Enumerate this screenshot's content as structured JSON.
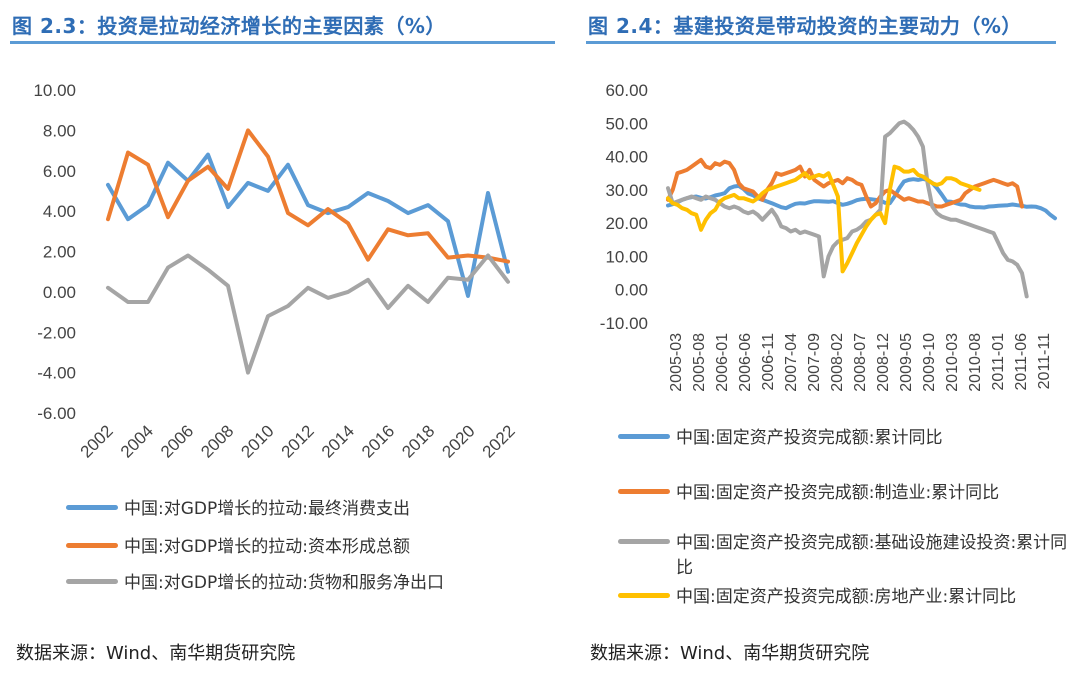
{
  "left": {
    "title": "图 2.3：投资是拉动经济增长的主要因素（%）",
    "source": "数据来源：Wind、南华期货研究院"
  },
  "right": {
    "title": "图 2.4：基建投资是带动投资的主要动力（%）",
    "source": "数据来源：Wind、南华期货研究院"
  },
  "chart_data": [
    {
      "type": "line",
      "title": "图 2.3：投资是拉动经济增长的主要因素（%）",
      "x": [
        2002,
        2003,
        2004,
        2005,
        2006,
        2007,
        2008,
        2009,
        2010,
        2011,
        2012,
        2013,
        2014,
        2015,
        2016,
        2017,
        2018,
        2019,
        2020,
        2021,
        2022
      ],
      "x_tick_labels": [
        "2002",
        "2004",
        "2006",
        "2008",
        "2010",
        "2012",
        "2014",
        "2016",
        "2018",
        "2020",
        "2022"
      ],
      "ylim": [
        -6,
        10
      ],
      "y_tick_labels": [
        "10.00",
        "8.00",
        "6.00",
        "4.00",
        "2.00",
        "0.00",
        "-2.00",
        "-4.00",
        "-6.00"
      ],
      "grid": false,
      "legend_position": "bottom",
      "series": [
        {
          "name": "中国:对GDP增长的拉动:最终消费支出",
          "color": "#5b9bd5",
          "values": [
            5.3,
            3.6,
            4.3,
            6.4,
            5.5,
            6.8,
            4.2,
            5.4,
            5.0,
            6.3,
            4.3,
            3.9,
            4.2,
            4.9,
            4.5,
            3.9,
            4.3,
            3.5,
            -0.2,
            4.9,
            1.0
          ]
        },
        {
          "name": "中国:对GDP增长的拉动:资本形成总额",
          "color": "#ed7d31",
          "values": [
            3.6,
            6.9,
            6.3,
            3.7,
            5.5,
            6.2,
            5.1,
            8.0,
            6.7,
            3.9,
            3.3,
            4.1,
            3.4,
            1.6,
            3.1,
            2.8,
            2.9,
            1.7,
            1.8,
            1.7,
            1.5
          ]
        },
        {
          "name": "中国:对GDP增长的拉动:货物和服务净出口",
          "color": "#a5a5a5",
          "values": [
            0.2,
            -0.5,
            -0.5,
            1.2,
            1.8,
            1.1,
            0.3,
            -4.0,
            -1.2,
            -0.7,
            0.2,
            -0.3,
            0.0,
            0.6,
            -0.8,
            0.3,
            -0.5,
            0.7,
            0.6,
            1.8,
            0.5
          ]
        }
      ]
    },
    {
      "type": "line",
      "title": "图 2.4：基建投资是带动投资的主要动力（%）",
      "x_start": "2005-03",
      "x_tick_labels": [
        "2005-03",
        "2005-08",
        "2006-01",
        "2006-06",
        "2006-11",
        "2007-04",
        "2007-09",
        "2008-02",
        "2008-07",
        "2008-12",
        "2009-05",
        "2009-10",
        "2010-03",
        "2010-08",
        "2011-01",
        "2011-06",
        "2011-11"
      ],
      "ylim": [
        -10,
        60
      ],
      "y_tick_labels": [
        "60.00",
        "50.00",
        "40.00",
        "30.00",
        "20.00",
        "10.00",
        "0.00",
        "-10.00"
      ],
      "grid": false,
      "legend_position": "bottom",
      "series": [
        {
          "name": "中国:固定资产投资完成额:累计同比",
          "color": "#5b9bd5",
          "values": [
            25.3,
            25.7,
            26.3,
            27.0,
            27.5,
            27.8,
            28.0,
            27.6,
            27.4,
            27.8,
            28.3,
            28.6,
            29.0,
            30.5,
            31.0,
            31.2,
            30.3,
            28.9,
            28.4,
            27.5,
            27.0,
            26.5,
            26.0,
            25.4,
            24.8,
            24.5,
            25.2,
            25.8,
            26.0,
            25.9,
            26.3,
            26.6,
            26.6,
            26.5,
            26.4,
            26.6,
            26.0,
            25.5,
            25.8,
            26.3,
            26.9,
            27.2,
            27.3,
            27.2,
            27.0,
            26.8,
            26.1,
            26.0,
            28.0,
            30.5,
            32.5,
            33.0,
            33.2,
            33.0,
            33.3,
            33.0,
            32.1,
            30.5,
            28.6,
            26.5,
            26.4,
            26.0,
            25.6,
            25.5,
            25.0,
            24.8,
            24.8,
            24.7,
            25.0,
            25.1,
            25.2,
            25.3,
            25.4,
            25.6,
            25.4,
            25.2,
            24.9,
            25.0,
            24.9,
            24.5,
            23.8,
            22.5,
            21.5
          ]
        },
        {
          "name": "中国:固定资产投资完成额:制造业:累计同比",
          "color": "#ed7d31",
          "values": [
            27.0,
            30.0,
            35.0,
            35.5,
            36.0,
            37.0,
            38.0,
            39.0,
            37.0,
            36.5,
            38.0,
            37.5,
            38.5,
            38.0,
            36.0,
            32.0,
            30.5,
            30.0,
            29.5,
            28.0,
            27.0,
            30.0,
            32.0,
            35.0,
            34.5,
            35.0,
            35.5,
            36.0,
            37.0,
            34.0,
            36.0,
            33.0,
            32.0,
            31.0,
            32.0,
            32.5,
            33.0,
            32.0,
            33.5,
            33.0,
            32.0,
            31.5,
            28.0,
            25.0,
            26.0,
            28.0,
            29.5,
            30.0,
            29.0,
            28.0,
            27.0,
            27.5,
            27.0,
            26.5,
            26.5,
            26.0,
            25.5,
            25.0,
            25.0,
            25.5,
            26.0,
            26.5,
            27.0,
            29.0,
            30.0,
            31.0,
            31.5,
            32.0,
            32.5,
            33.0,
            32.5,
            32.0,
            31.5,
            32.0,
            31.0,
            25.0
          ]
        },
        {
          "name": "中国:固定资产投资完成额:基础设施建设投资:累计同比",
          "color": "#a5a5a5",
          "values": [
            30.5,
            26.0,
            26.5,
            27.0,
            27.5,
            28.0,
            27.5,
            27.0,
            28.0,
            27.5,
            27.0,
            26.0,
            25.0,
            24.5,
            25.0,
            24.5,
            23.5,
            23.0,
            23.5,
            22.5,
            21.0,
            22.5,
            24.0,
            22.0,
            19.0,
            18.5,
            17.5,
            18.0,
            17.0,
            17.5,
            17.0,
            16.5,
            16.0,
            4.0,
            10.0,
            13.0,
            14.5,
            15.0,
            15.5,
            17.5,
            18.0,
            19.0,
            20.5,
            21.0,
            22.5,
            24.0,
            46.0,
            47.0,
            48.5,
            50.0,
            50.5,
            49.5,
            48.0,
            46.0,
            43.0,
            32.0,
            25.0,
            23.0,
            22.0,
            21.5,
            21.0,
            21.0,
            20.5,
            20.0,
            19.5,
            19.0,
            18.5,
            18.0,
            17.5,
            17.0,
            14.0,
            11.0,
            9.0,
            8.5,
            7.5,
            5.0,
            -2.0
          ]
        },
        {
          "name": "中国:固定资产投资完成额:房地产业:累计同比",
          "color": "#ffc000",
          "values": [
            27.5,
            26.0,
            25.5,
            24.5,
            24.0,
            23.0,
            22.5,
            18.0,
            21.0,
            23.0,
            24.0,
            26.5,
            27.5,
            28.0,
            28.5,
            27.5,
            27.5,
            27.0,
            26.5,
            27.5,
            29.0,
            30.0,
            30.5,
            31.0,
            31.5,
            32.0,
            32.5,
            33.0,
            34.0,
            35.0,
            33.5,
            34.0,
            34.5,
            34.0,
            35.0,
            31.5,
            28.0,
            5.5,
            8.0,
            11.0,
            14.0,
            16.5,
            19.0,
            21.0,
            22.5,
            23.0,
            20.0,
            30.0,
            37.0,
            36.5,
            35.5,
            35.5,
            36.0,
            34.5,
            34.0,
            33.0,
            32.0,
            31.5,
            32.0,
            33.5,
            33.5,
            33.0,
            32.0,
            31.5,
            31.0,
            30.5,
            30.0
          ]
        }
      ]
    }
  ]
}
